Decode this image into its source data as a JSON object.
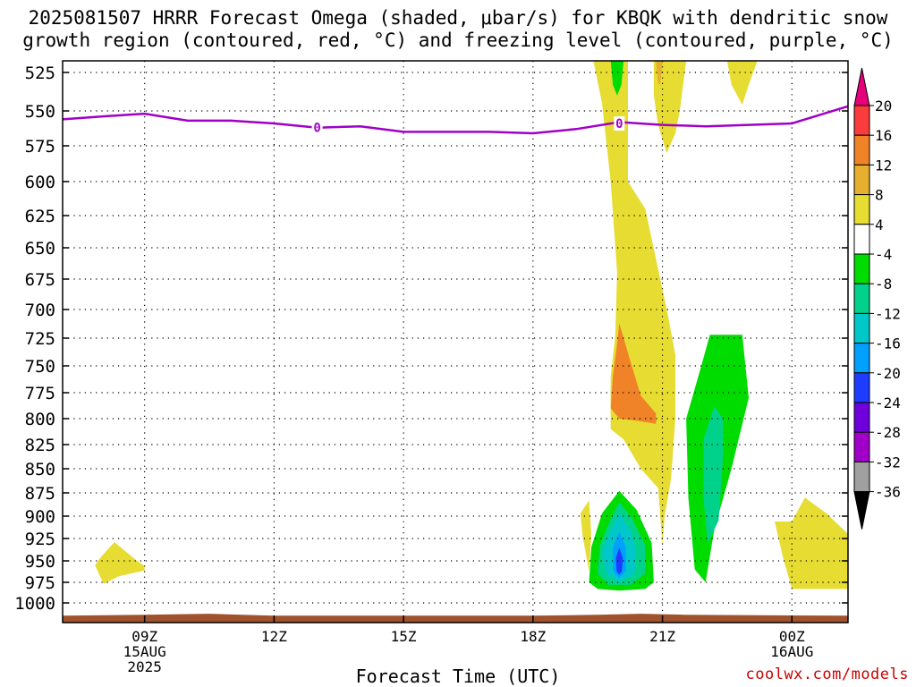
{
  "title_line1": "2025081507 HRRR Forecast Omega (shaded, μbar/s) for KBQK with dendritic snow",
  "title_line2": "growth region (contoured, red, °C) and freezing level (contoured, purple, °C)",
  "xlabel": "Forecast Time (UTC)",
  "credit": "coolwx.com/models",
  "chart_data": {
    "type": "heatmap",
    "model_run": "2025081507",
    "station": "KBQK",
    "x_unit": "hours UTC (15 Aug 2025; 24 = 00Z 16 Aug)",
    "xlim": [
      7.1,
      25.3
    ],
    "ylim": [
      1020,
      520
    ],
    "y_ticks": [
      525,
      550,
      575,
      600,
      625,
      650,
      675,
      700,
      725,
      750,
      775,
      800,
      825,
      850,
      875,
      900,
      925,
      950,
      975,
      1000
    ],
    "x_ticks": [
      {
        "x": 9,
        "lines": [
          "09Z",
          "15AUG",
          "2025"
        ]
      },
      {
        "x": 12,
        "lines": [
          "12Z"
        ]
      },
      {
        "x": 15,
        "lines": [
          "15Z"
        ]
      },
      {
        "x": 18,
        "lines": [
          "18Z"
        ]
      },
      {
        "x": 21,
        "lines": [
          "21Z"
        ]
      },
      {
        "x": 24,
        "lines": [
          "00Z",
          "16AUG"
        ]
      }
    ],
    "grid": true,
    "colorbar": {
      "levels": [
        -36,
        -32,
        -28,
        -24,
        -20,
        -16,
        -12,
        -8,
        -4,
        4,
        8,
        12,
        16,
        20
      ],
      "colors": [
        "#000000",
        "#a0a0a0",
        "#a000c8",
        "#6e00dc",
        "#1e3cff",
        "#00a0ff",
        "#00c8c8",
        "#00d28c",
        "#00dc00",
        "#ffffff",
        "#e6dc32",
        "#e6af2d",
        "#f08228",
        "#fa3c3c",
        "#e6007a"
      ],
      "tick_labels": [
        "20",
        "16",
        "12",
        "8",
        "4",
        "-4",
        "-8",
        "-12",
        "-16",
        "-20",
        "-24",
        "-28",
        "-32",
        "-36"
      ]
    },
    "freezing_level": {
      "label": "0",
      "label_points": [
        [
          13.0,
          562
        ],
        [
          20.0,
          559
        ]
      ],
      "points": [
        [
          7.1,
          556
        ],
        [
          8.0,
          554
        ],
        [
          9.0,
          552
        ],
        [
          10.0,
          557
        ],
        [
          11.0,
          557
        ],
        [
          12.0,
          559
        ],
        [
          13.0,
          562
        ],
        [
          14.0,
          561
        ],
        [
          15.0,
          565
        ],
        [
          16.0,
          565
        ],
        [
          17.0,
          565
        ],
        [
          18.0,
          566
        ],
        [
          19.0,
          563
        ],
        [
          20.0,
          558
        ],
        [
          21.0,
          560
        ],
        [
          22.0,
          561
        ],
        [
          23.0,
          560
        ],
        [
          24.0,
          559
        ],
        [
          25.3,
          547
        ]
      ]
    },
    "terrain": {
      "color": "#a0522d",
      "points": [
        [
          7.1,
          1013
        ],
        [
          9.0,
          1012
        ],
        [
          10.5,
          1011
        ],
        [
          12.0,
          1013
        ],
        [
          18.0,
          1013
        ],
        [
          19.5,
          1012
        ],
        [
          20.5,
          1011
        ],
        [
          21.5,
          1012
        ],
        [
          25.3,
          1013
        ]
      ]
    },
    "omega_regions": [
      {
        "value": 5,
        "points": [
          [
            19.4,
            520
          ],
          [
            20.2,
            520
          ],
          [
            20.2,
            600
          ],
          [
            20.6,
            620
          ],
          [
            21.1,
            700
          ],
          [
            21.3,
            740
          ],
          [
            21.3,
            800
          ],
          [
            21.2,
            860
          ],
          [
            21.05,
            900
          ],
          [
            21.0,
            932
          ],
          [
            20.9,
            870
          ],
          [
            20.5,
            850
          ],
          [
            20.1,
            820
          ],
          [
            19.8,
            810
          ],
          [
            19.8,
            770
          ],
          [
            19.9,
            730
          ],
          [
            19.95,
            670
          ],
          [
            19.8,
            600
          ],
          [
            19.6,
            545
          ]
        ]
      },
      {
        "value": 5,
        "points": [
          [
            20.8,
            520
          ],
          [
            21.55,
            520
          ],
          [
            21.4,
            550
          ],
          [
            21.3,
            566
          ],
          [
            21.1,
            580
          ],
          [
            20.9,
            560
          ],
          [
            20.8,
            540
          ]
        ]
      },
      {
        "value": 10,
        "points": [
          [
            20.85,
            520
          ],
          [
            21.0,
            520
          ],
          [
            20.95,
            533
          ],
          [
            20.9,
            532
          ]
        ]
      },
      {
        "value": 5,
        "points": [
          [
            22.5,
            520
          ],
          [
            23.2,
            520
          ],
          [
            23.0,
            533
          ],
          [
            22.85,
            546
          ],
          [
            22.6,
            533
          ]
        ]
      },
      {
        "value": -5,
        "points": [
          [
            19.8,
            520
          ],
          [
            20.1,
            520
          ],
          [
            20.05,
            533
          ],
          [
            19.95,
            540
          ],
          [
            19.85,
            533
          ]
        ]
      },
      {
        "value": 6,
        "points": [
          [
            20.0,
            668
          ],
          [
            20.2,
            680
          ],
          [
            20.5,
            715
          ],
          [
            20.8,
            760
          ],
          [
            20.9,
            800
          ],
          [
            21.05,
            848
          ],
          [
            20.8,
            840
          ],
          [
            20.5,
            825
          ],
          [
            20.3,
            805
          ],
          [
            19.8,
            795
          ],
          [
            19.8,
            760
          ],
          [
            19.9,
            725
          ],
          [
            20.0,
            692
          ]
        ]
      },
      {
        "value": 14,
        "points": [
          [
            20.0,
            712
          ],
          [
            20.25,
            745
          ],
          [
            20.5,
            778
          ],
          [
            20.85,
            795
          ],
          [
            20.85,
            805
          ],
          [
            20.4,
            802
          ],
          [
            20.0,
            800
          ],
          [
            19.8,
            790
          ],
          [
            19.85,
            760
          ],
          [
            19.95,
            730
          ]
        ]
      },
      {
        "value": 5,
        "points": [
          [
            19.1,
            897
          ],
          [
            19.3,
            883
          ],
          [
            19.35,
            920
          ],
          [
            19.3,
            962
          ],
          [
            19.15,
            922
          ]
        ]
      },
      {
        "value": 5,
        "points": [
          [
            8.0,
            945
          ],
          [
            8.3,
            929
          ],
          [
            8.8,
            949
          ],
          [
            9.0,
            956
          ],
          [
            9.0,
            961
          ],
          [
            8.4,
            968
          ],
          [
            8.05,
            977
          ],
          [
            7.85,
            955
          ]
        ]
      },
      {
        "value": 5,
        "points": [
          [
            24.0,
            906
          ],
          [
            24.3,
            880
          ],
          [
            24.8,
            897
          ],
          [
            25.3,
            920
          ],
          [
            25.3,
            983
          ],
          [
            24.6,
            983
          ],
          [
            24.0,
            983
          ],
          [
            23.8,
            947
          ],
          [
            23.6,
            906
          ]
        ]
      },
      {
        "value": -6,
        "points": [
          [
            22.1,
            722
          ],
          [
            22.85,
            722
          ],
          [
            23.0,
            780
          ],
          [
            22.6,
            850
          ],
          [
            22.2,
            915
          ],
          [
            22.0,
            975
          ],
          [
            21.75,
            960
          ],
          [
            21.6,
            880
          ],
          [
            21.55,
            800
          ],
          [
            21.9,
            750
          ]
        ]
      },
      {
        "value": -10,
        "points": [
          [
            22.2,
            788
          ],
          [
            22.4,
            800
          ],
          [
            22.4,
            840
          ],
          [
            22.3,
            905
          ],
          [
            22.05,
            930
          ],
          [
            21.95,
            880
          ],
          [
            21.95,
            820
          ]
        ]
      },
      {
        "value": -6,
        "points": [
          [
            20.0,
            873
          ],
          [
            20.4,
            893
          ],
          [
            20.75,
            930
          ],
          [
            20.8,
            975
          ],
          [
            20.6,
            983
          ],
          [
            20.0,
            985
          ],
          [
            19.5,
            983
          ],
          [
            19.3,
            975
          ],
          [
            19.35,
            935
          ],
          [
            19.6,
            897
          ]
        ]
      },
      {
        "value": -10,
        "points": [
          [
            20.0,
            885
          ],
          [
            20.3,
            903
          ],
          [
            20.6,
            933
          ],
          [
            20.6,
            965
          ],
          [
            20.25,
            978
          ],
          [
            19.75,
            978
          ],
          [
            19.5,
            965
          ],
          [
            19.55,
            933
          ],
          [
            19.8,
            903
          ]
        ]
      },
      {
        "value": -14,
        "points": [
          [
            20.0,
            897
          ],
          [
            20.25,
            915
          ],
          [
            20.4,
            940
          ],
          [
            20.35,
            965
          ],
          [
            20.0,
            975
          ],
          [
            19.7,
            965
          ],
          [
            19.6,
            940
          ],
          [
            19.8,
            915
          ]
        ]
      },
      {
        "value": -18,
        "points": [
          [
            20.0,
            917
          ],
          [
            20.15,
            935
          ],
          [
            20.15,
            962
          ],
          [
            20.0,
            970
          ],
          [
            19.85,
            962
          ],
          [
            19.85,
            935
          ]
        ]
      },
      {
        "value": -22,
        "points": [
          [
            20.0,
            935
          ],
          [
            20.08,
            947
          ],
          [
            20.06,
            962
          ],
          [
            20.0,
            966
          ],
          [
            19.94,
            962
          ],
          [
            19.92,
            947
          ]
        ]
      }
    ]
  }
}
